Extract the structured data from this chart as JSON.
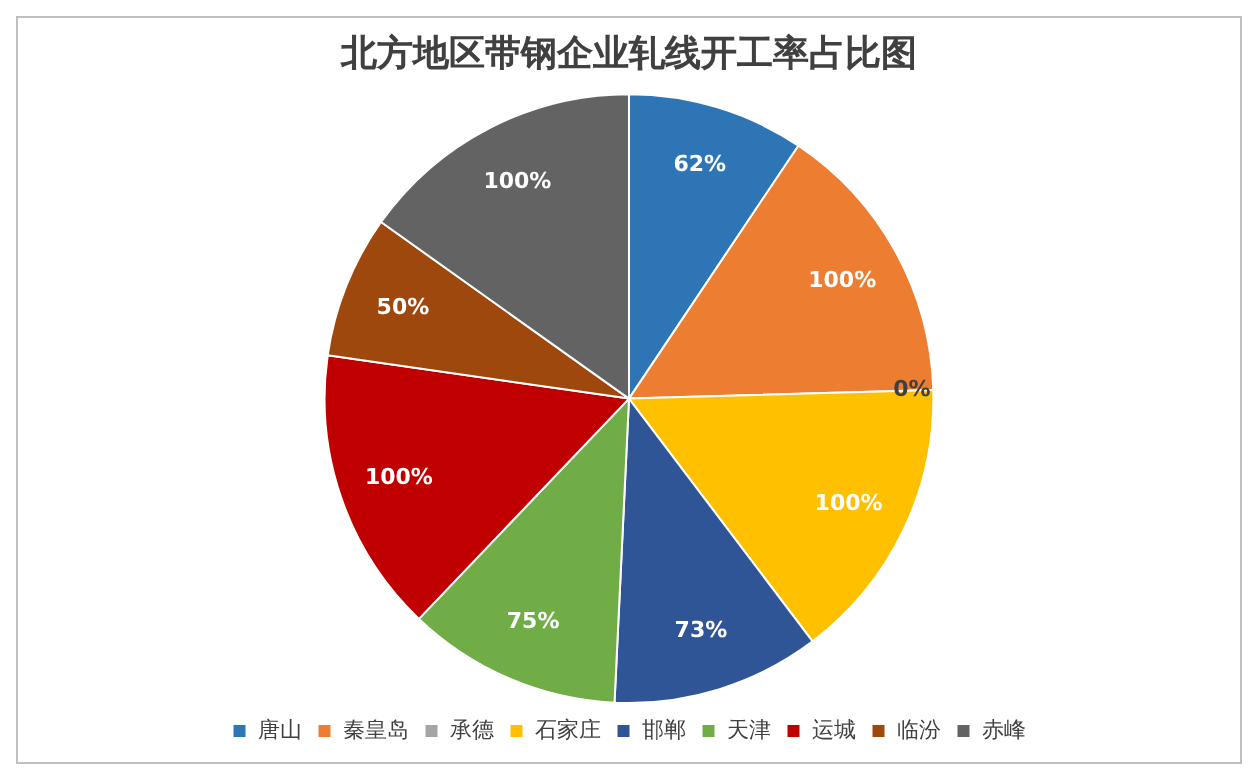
{
  "chart_data": {
    "type": "pie",
    "title": "北方地区带钢企业轧线开工率占比图",
    "categories": [
      "唐山",
      "秦皇岛",
      "承德",
      "石家庄",
      "邯郸",
      "天津",
      "运城",
      "临汾",
      "赤峰"
    ],
    "values": [
      62,
      100,
      0,
      100,
      73,
      75,
      100,
      50,
      100
    ],
    "value_labels": [
      "62%",
      "100%",
      "0%",
      "100%",
      "73%",
      "75%",
      "100%",
      "50%",
      "100%"
    ],
    "colors": [
      "#2e75b6",
      "#ed7d31",
      "#a5a5a5",
      "#ffc000",
      "#2f5597",
      "#70ad47",
      "#c00000",
      "#9e480e",
      "#636363"
    ],
    "legend": "bottom"
  }
}
